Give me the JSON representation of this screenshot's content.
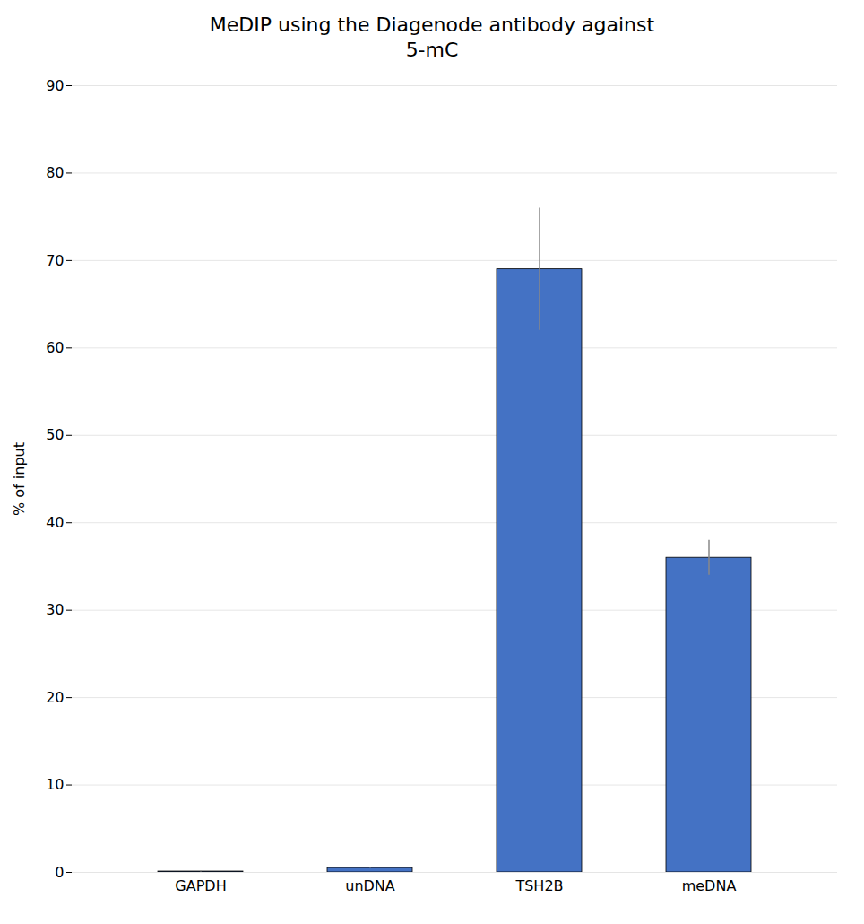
{
  "chart_data": {
    "type": "bar",
    "title": "MeDIP using the Diagenode antibody against\n5-mC",
    "categories": [
      "GAPDH",
      "unDNA",
      "TSH2B",
      "meDNA"
    ],
    "values": [
      0.1,
      0.5,
      69.0,
      36.0
    ],
    "errors": [
      0.05,
      0.05,
      7.0,
      2.0
    ],
    "color": "#4472C4",
    "ylabel": "% of input",
    "ylim": [
      0,
      90
    ],
    "yticks": [
      0,
      10,
      20,
      30,
      40,
      50,
      60,
      70,
      80,
      90
    ],
    "grid": true
  }
}
